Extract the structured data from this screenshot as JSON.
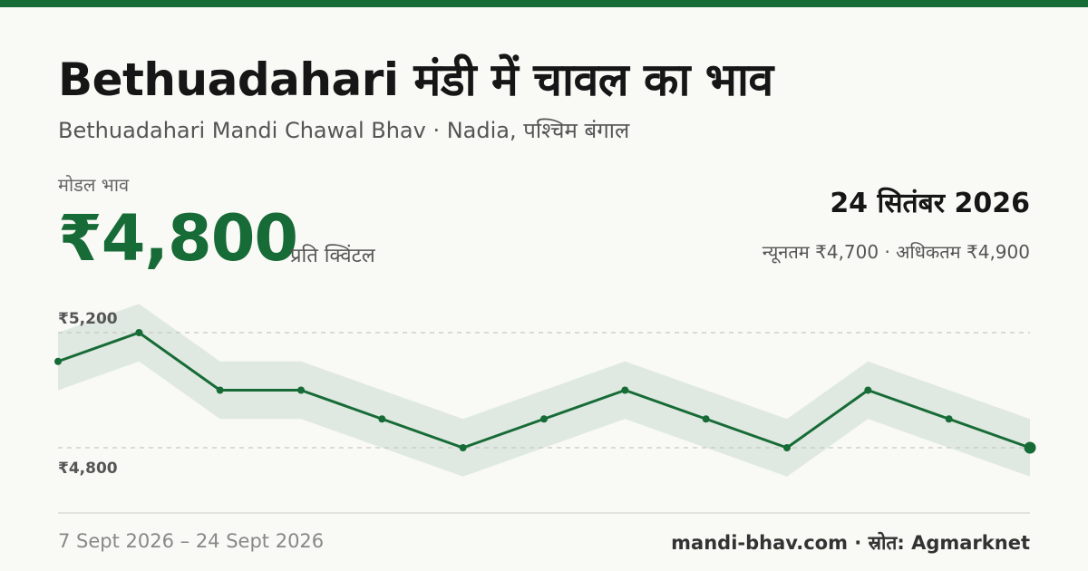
{
  "theme": {
    "accent": "#176b36",
    "band": "#dfe9e1",
    "grid": "#c8c8c4"
  },
  "header": {
    "title": "Bethuadahari मंडी में चावल का भाव",
    "subtitle": "Bethuadahari Mandi Chawal Bhav · Nadia, पश्चिम बंगाल"
  },
  "summary": {
    "price_label": "मोडल भाव",
    "price": "₹4,800",
    "unit": "प्रति क्विंटल",
    "date": "24 सितंबर 2026",
    "range": "न्यूनतम ₹4,700 · अधिकतम ₹4,900"
  },
  "chart_data": {
    "type": "line",
    "title": "",
    "xlabel": "",
    "ylabel": "",
    "grid_labels": [
      "₹5,200",
      "₹4,800"
    ],
    "grid_values": [
      5200,
      4800
    ],
    "ylim": [
      4800,
      5200
    ],
    "series": [
      {
        "values": [
          5100,
          5200,
          5000,
          5000,
          4900,
          4800,
          4900,
          5000,
          4900,
          4800,
          5000,
          4900,
          4800
        ],
        "min": [
          5000,
          5100,
          4900,
          4900,
          4800,
          4700,
          4800,
          4900,
          4800,
          4700,
          4900,
          4800,
          4700
        ],
        "max": [
          5200,
          5300,
          5100,
          5100,
          5000,
          4900,
          5000,
          5100,
          5000,
          4900,
          5100,
          5000,
          4900
        ]
      }
    ]
  },
  "footer": {
    "date_range": "7 Sept 2026 – 24 Sept 2026",
    "source": "mandi-bhav.com · स्रोत: Agmarknet"
  }
}
